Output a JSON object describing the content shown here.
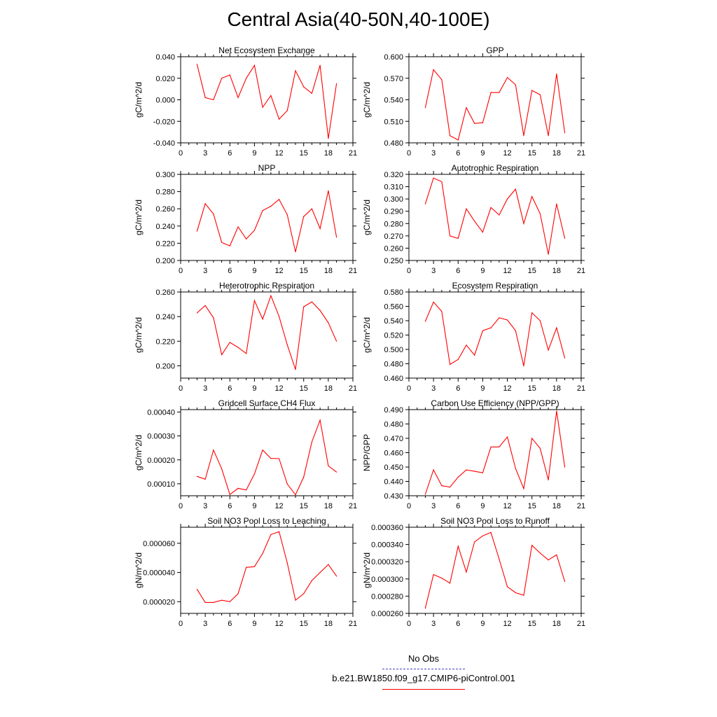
{
  "title": "Central Asia(40-50N,40-100E)",
  "colors": {
    "series": "#ff0000",
    "obs": "#4040c0",
    "axis": "#000000"
  },
  "legend": {
    "items": [
      {
        "label": "No Obs",
        "color": "#4040c0",
        "style": "dashed"
      },
      {
        "label": "b.e21.BW1850.f09_g17.CMIP6-piControl.001",
        "color": "#ff0000",
        "style": "solid"
      }
    ]
  },
  "chart_data": [
    {
      "type": "line",
      "title": "Net Ecosystem Exchange",
      "ylabel": "gC/m^2/d",
      "xlim": [
        0,
        21
      ],
      "xticks": [
        "0",
        "3",
        "6",
        "9",
        "12",
        "15",
        "18",
        "21"
      ],
      "ylim": [
        -0.04,
        0.04
      ],
      "yticks": [
        -0.04,
        -0.02,
        0.0,
        0.02,
        0.04
      ],
      "ytick_labels": [
        "-0.040",
        "-0.020",
        "0.000",
        "0.020",
        "0.040"
      ],
      "x": [
        2,
        3,
        4,
        5,
        6,
        7,
        8,
        9,
        10,
        11,
        12,
        13,
        14,
        15,
        16,
        17,
        18,
        19
      ],
      "series": [
        {
          "name": "b.e21.BW1850.f09_g17.CMIP6-piControl.001",
          "values": [
            0.033,
            0.002,
            0.0,
            0.02,
            0.023,
            0.002,
            0.02,
            0.032,
            -0.007,
            0.004,
            -0.018,
            -0.01,
            0.027,
            0.012,
            0.006,
            0.032,
            -0.036,
            0.015
          ]
        }
      ]
    },
    {
      "type": "line",
      "title": "GPP",
      "ylabel": "gC/m^2/d",
      "xlim": [
        0,
        21
      ],
      "xticks": [
        "0",
        "3",
        "6",
        "9",
        "12",
        "15",
        "18",
        "21"
      ],
      "ylim": [
        0.48,
        0.6
      ],
      "yticks": [
        0.48,
        0.51,
        0.54,
        0.57,
        0.6
      ],
      "ytick_labels": [
        "0.480",
        "0.510",
        "0.540",
        "0.570",
        "0.600"
      ],
      "x": [
        2,
        3,
        4,
        5,
        6,
        7,
        8,
        9,
        10,
        11,
        12,
        13,
        14,
        15,
        16,
        17,
        18,
        19
      ],
      "series": [
        {
          "name": "b.e21.BW1850.f09_g17.CMIP6-piControl.001",
          "values": [
            0.529,
            0.582,
            0.568,
            0.49,
            0.484,
            0.529,
            0.507,
            0.508,
            0.55,
            0.55,
            0.571,
            0.561,
            0.49,
            0.553,
            0.547,
            0.49,
            0.576,
            0.494
          ]
        }
      ]
    },
    {
      "type": "line",
      "title": "NPP",
      "ylabel": "gC/m^2/d",
      "xlim": [
        0,
        21
      ],
      "xticks": [
        "0",
        "3",
        "6",
        "9",
        "12",
        "15",
        "18",
        "21"
      ],
      "ylim": [
        0.2,
        0.3
      ],
      "yticks": [
        0.2,
        0.22,
        0.24,
        0.26,
        0.28,
        0.3
      ],
      "ytick_labels": [
        "0.200",
        "0.220",
        "0.240",
        "0.260",
        "0.280",
        "0.300"
      ],
      "x": [
        2,
        3,
        4,
        5,
        6,
        7,
        8,
        9,
        10,
        11,
        12,
        13,
        14,
        15,
        16,
        17,
        18,
        19
      ],
      "series": [
        {
          "name": "b.e21.BW1850.f09_g17.CMIP6-piControl.001",
          "values": [
            0.234,
            0.266,
            0.254,
            0.221,
            0.217,
            0.239,
            0.225,
            0.235,
            0.258,
            0.263,
            0.271,
            0.253,
            0.21,
            0.251,
            0.26,
            0.237,
            0.281,
            0.227
          ]
        }
      ]
    },
    {
      "type": "line",
      "title": "Autotrophic Respiration",
      "ylabel": "gC/m^2/d",
      "xlim": [
        0,
        21
      ],
      "xticks": [
        "0",
        "3",
        "6",
        "9",
        "12",
        "15",
        "18",
        "21"
      ],
      "ylim": [
        0.25,
        0.32
      ],
      "yticks": [
        0.25,
        0.26,
        0.27,
        0.28,
        0.29,
        0.3,
        0.31,
        0.32
      ],
      "ytick_labels": [
        "0.250",
        "0.260",
        "0.270",
        "0.280",
        "0.290",
        "0.300",
        "0.310",
        "0.320"
      ],
      "x": [
        2,
        3,
        4,
        5,
        6,
        7,
        8,
        9,
        10,
        11,
        12,
        13,
        14,
        15,
        16,
        17,
        18,
        19
      ],
      "series": [
        {
          "name": "b.e21.BW1850.f09_g17.CMIP6-piControl.001",
          "values": [
            0.296,
            0.317,
            0.314,
            0.27,
            0.268,
            0.292,
            0.282,
            0.273,
            0.293,
            0.287,
            0.3,
            0.308,
            0.28,
            0.302,
            0.288,
            0.255,
            0.296,
            0.268
          ]
        }
      ]
    },
    {
      "type": "line",
      "title": "Heterotrophic Respiration",
      "ylabel": "gC/m^2/d",
      "xlim": [
        0,
        21
      ],
      "xticks": [
        "0",
        "3",
        "6",
        "9",
        "12",
        "15",
        "18",
        "21"
      ],
      "ylim": [
        0.19,
        0.26
      ],
      "yticks": [
        0.2,
        0.22,
        0.24,
        0.26
      ],
      "ytick_labels": [
        "0.200",
        "0.220",
        "0.240",
        "0.260"
      ],
      "x": [
        2,
        3,
        4,
        5,
        6,
        7,
        8,
        9,
        10,
        11,
        12,
        13,
        14,
        15,
        16,
        17,
        18,
        19
      ],
      "series": [
        {
          "name": "b.e21.BW1850.f09_g17.CMIP6-piControl.001",
          "values": [
            0.243,
            0.249,
            0.239,
            0.209,
            0.219,
            0.215,
            0.21,
            0.253,
            0.238,
            0.257,
            0.24,
            0.217,
            0.197,
            0.248,
            0.252,
            0.245,
            0.235,
            0.22
          ]
        }
      ]
    },
    {
      "type": "line",
      "title": "Ecosystem Respiration",
      "ylabel": "gC/m^2/d",
      "xlim": [
        0,
        21
      ],
      "xticks": [
        "0",
        "3",
        "6",
        "9",
        "12",
        "15",
        "18",
        "21"
      ],
      "ylim": [
        0.46,
        0.58
      ],
      "yticks": [
        0.46,
        0.48,
        0.5,
        0.52,
        0.54,
        0.56,
        0.58
      ],
      "ytick_labels": [
        "0.460",
        "0.480",
        "0.500",
        "0.520",
        "0.540",
        "0.560",
        "0.580"
      ],
      "x": [
        2,
        3,
        4,
        5,
        6,
        7,
        8,
        9,
        10,
        11,
        12,
        13,
        14,
        15,
        16,
        17,
        18,
        19
      ],
      "series": [
        {
          "name": "b.e21.BW1850.f09_g17.CMIP6-piControl.001",
          "values": [
            0.539,
            0.566,
            0.553,
            0.479,
            0.486,
            0.506,
            0.492,
            0.526,
            0.53,
            0.544,
            0.541,
            0.526,
            0.477,
            0.551,
            0.54,
            0.499,
            0.53,
            0.488
          ]
        }
      ]
    },
    {
      "type": "line",
      "title": "Gridcell Surface CH4 Flux",
      "ylabel": "gC/m^2/d",
      "xlim": [
        0,
        21
      ],
      "xticks": [
        "0",
        "3",
        "6",
        "9",
        "12",
        "15",
        "18",
        "21"
      ],
      "ylim": [
        5e-05,
        0.00041
      ],
      "yticks": [
        0.0001,
        0.0002,
        0.0003,
        0.0004
      ],
      "ytick_labels": [
        "0.00010",
        "0.00020",
        "0.00030",
        "0.00040"
      ],
      "x": [
        2,
        3,
        4,
        5,
        6,
        7,
        8,
        9,
        10,
        11,
        12,
        13,
        14,
        15,
        16,
        17,
        18,
        19
      ],
      "series": [
        {
          "name": "b.e21.BW1850.f09_g17.CMIP6-piControl.001",
          "values": [
            0.000131,
            0.000119,
            0.000241,
            0.000163,
            5.5e-05,
            8.1e-05,
            7.4e-05,
            0.000141,
            0.000241,
            0.000206,
            0.000205,
            9.9e-05,
            5.4e-05,
            0.000128,
            0.000275,
            0.000366,
            0.000175,
            0.000149
          ]
        }
      ]
    },
    {
      "type": "line",
      "title": "Carbon Use Efficiency (NPP/GPP)",
      "ylabel": "NPP/GPP",
      "xlim": [
        0,
        21
      ],
      "xticks": [
        "0",
        "3",
        "6",
        "9",
        "12",
        "15",
        "18",
        "21"
      ],
      "ylim": [
        0.43,
        0.49
      ],
      "yticks": [
        0.43,
        0.44,
        0.45,
        0.46,
        0.47,
        0.48,
        0.49
      ],
      "ytick_labels": [
        "0.430",
        "0.440",
        "0.450",
        "0.460",
        "0.470",
        "0.480",
        "0.490"
      ],
      "x": [
        2,
        3,
        4,
        5,
        6,
        7,
        8,
        9,
        10,
        11,
        12,
        13,
        14,
        15,
        16,
        17,
        18,
        19
      ],
      "series": [
        {
          "name": "b.e21.BW1850.f09_g17.CMIP6-piControl.001",
          "values": [
            0.431,
            0.448,
            0.437,
            0.436,
            0.443,
            0.448,
            0.447,
            0.446,
            0.464,
            0.464,
            0.471,
            0.449,
            0.435,
            0.47,
            0.463,
            0.441,
            0.489,
            0.45
          ]
        }
      ]
    },
    {
      "type": "line",
      "title": "Soil NO3 Pool Loss to Leaching",
      "ylabel": "gN/m^2/d",
      "xlim": [
        0,
        21
      ],
      "xticks": [
        "0",
        "3",
        "6",
        "9",
        "12",
        "15",
        "18",
        "21"
      ],
      "ylim": [
        1.2e-05,
        7.1e-05
      ],
      "yticks": [
        2e-05,
        4e-05,
        6e-05
      ],
      "ytick_labels": [
        "0.000020",
        "0.000040",
        "0.000060"
      ],
      "x": [
        2,
        3,
        4,
        5,
        6,
        7,
        8,
        9,
        10,
        11,
        12,
        13,
        14,
        15,
        16,
        17,
        18,
        19
      ],
      "series": [
        {
          "name": "b.e21.BW1850.f09_g17.CMIP6-piControl.001",
          "values": [
            2.85e-05,
            1.95e-05,
            1.95e-05,
            2.1e-05,
            2e-05,
            2.55e-05,
            4.35e-05,
            4.4e-05,
            5.3e-05,
            6.6e-05,
            6.8e-05,
            4.65e-05,
            2.1e-05,
            2.55e-05,
            3.45e-05,
            4e-05,
            4.55e-05,
            3.75e-05
          ]
        }
      ]
    },
    {
      "type": "line",
      "title": "Soil NO3 Pool Loss to Runoff",
      "ylabel": "gN/m^2/d",
      "xlim": [
        0,
        21
      ],
      "xticks": [
        "0",
        "3",
        "6",
        "9",
        "12",
        "15",
        "18",
        "21"
      ],
      "ylim": [
        0.00026,
        0.00036
      ],
      "yticks": [
        0.00026,
        0.00028,
        0.0003,
        0.00032,
        0.00034,
        0.00036
      ],
      "ytick_labels": [
        "0.000260",
        "0.000280",
        "0.000300",
        "0.000320",
        "0.000340",
        "0.000360"
      ],
      "x": [
        2,
        3,
        4,
        5,
        6,
        7,
        8,
        9,
        10,
        11,
        12,
        13,
        14,
        15,
        16,
        17,
        18,
        19
      ],
      "series": [
        {
          "name": "b.e21.BW1850.f09_g17.CMIP6-piControl.001",
          "values": [
            0.000266,
            0.000305,
            0.000301,
            0.000295,
            0.000338,
            0.000308,
            0.000343,
            0.00035,
            0.000354,
            0.000323,
            0.000291,
            0.000284,
            0.000281,
            0.000339,
            0.00033,
            0.000322,
            0.000328,
            0.000297
          ]
        }
      ]
    }
  ]
}
